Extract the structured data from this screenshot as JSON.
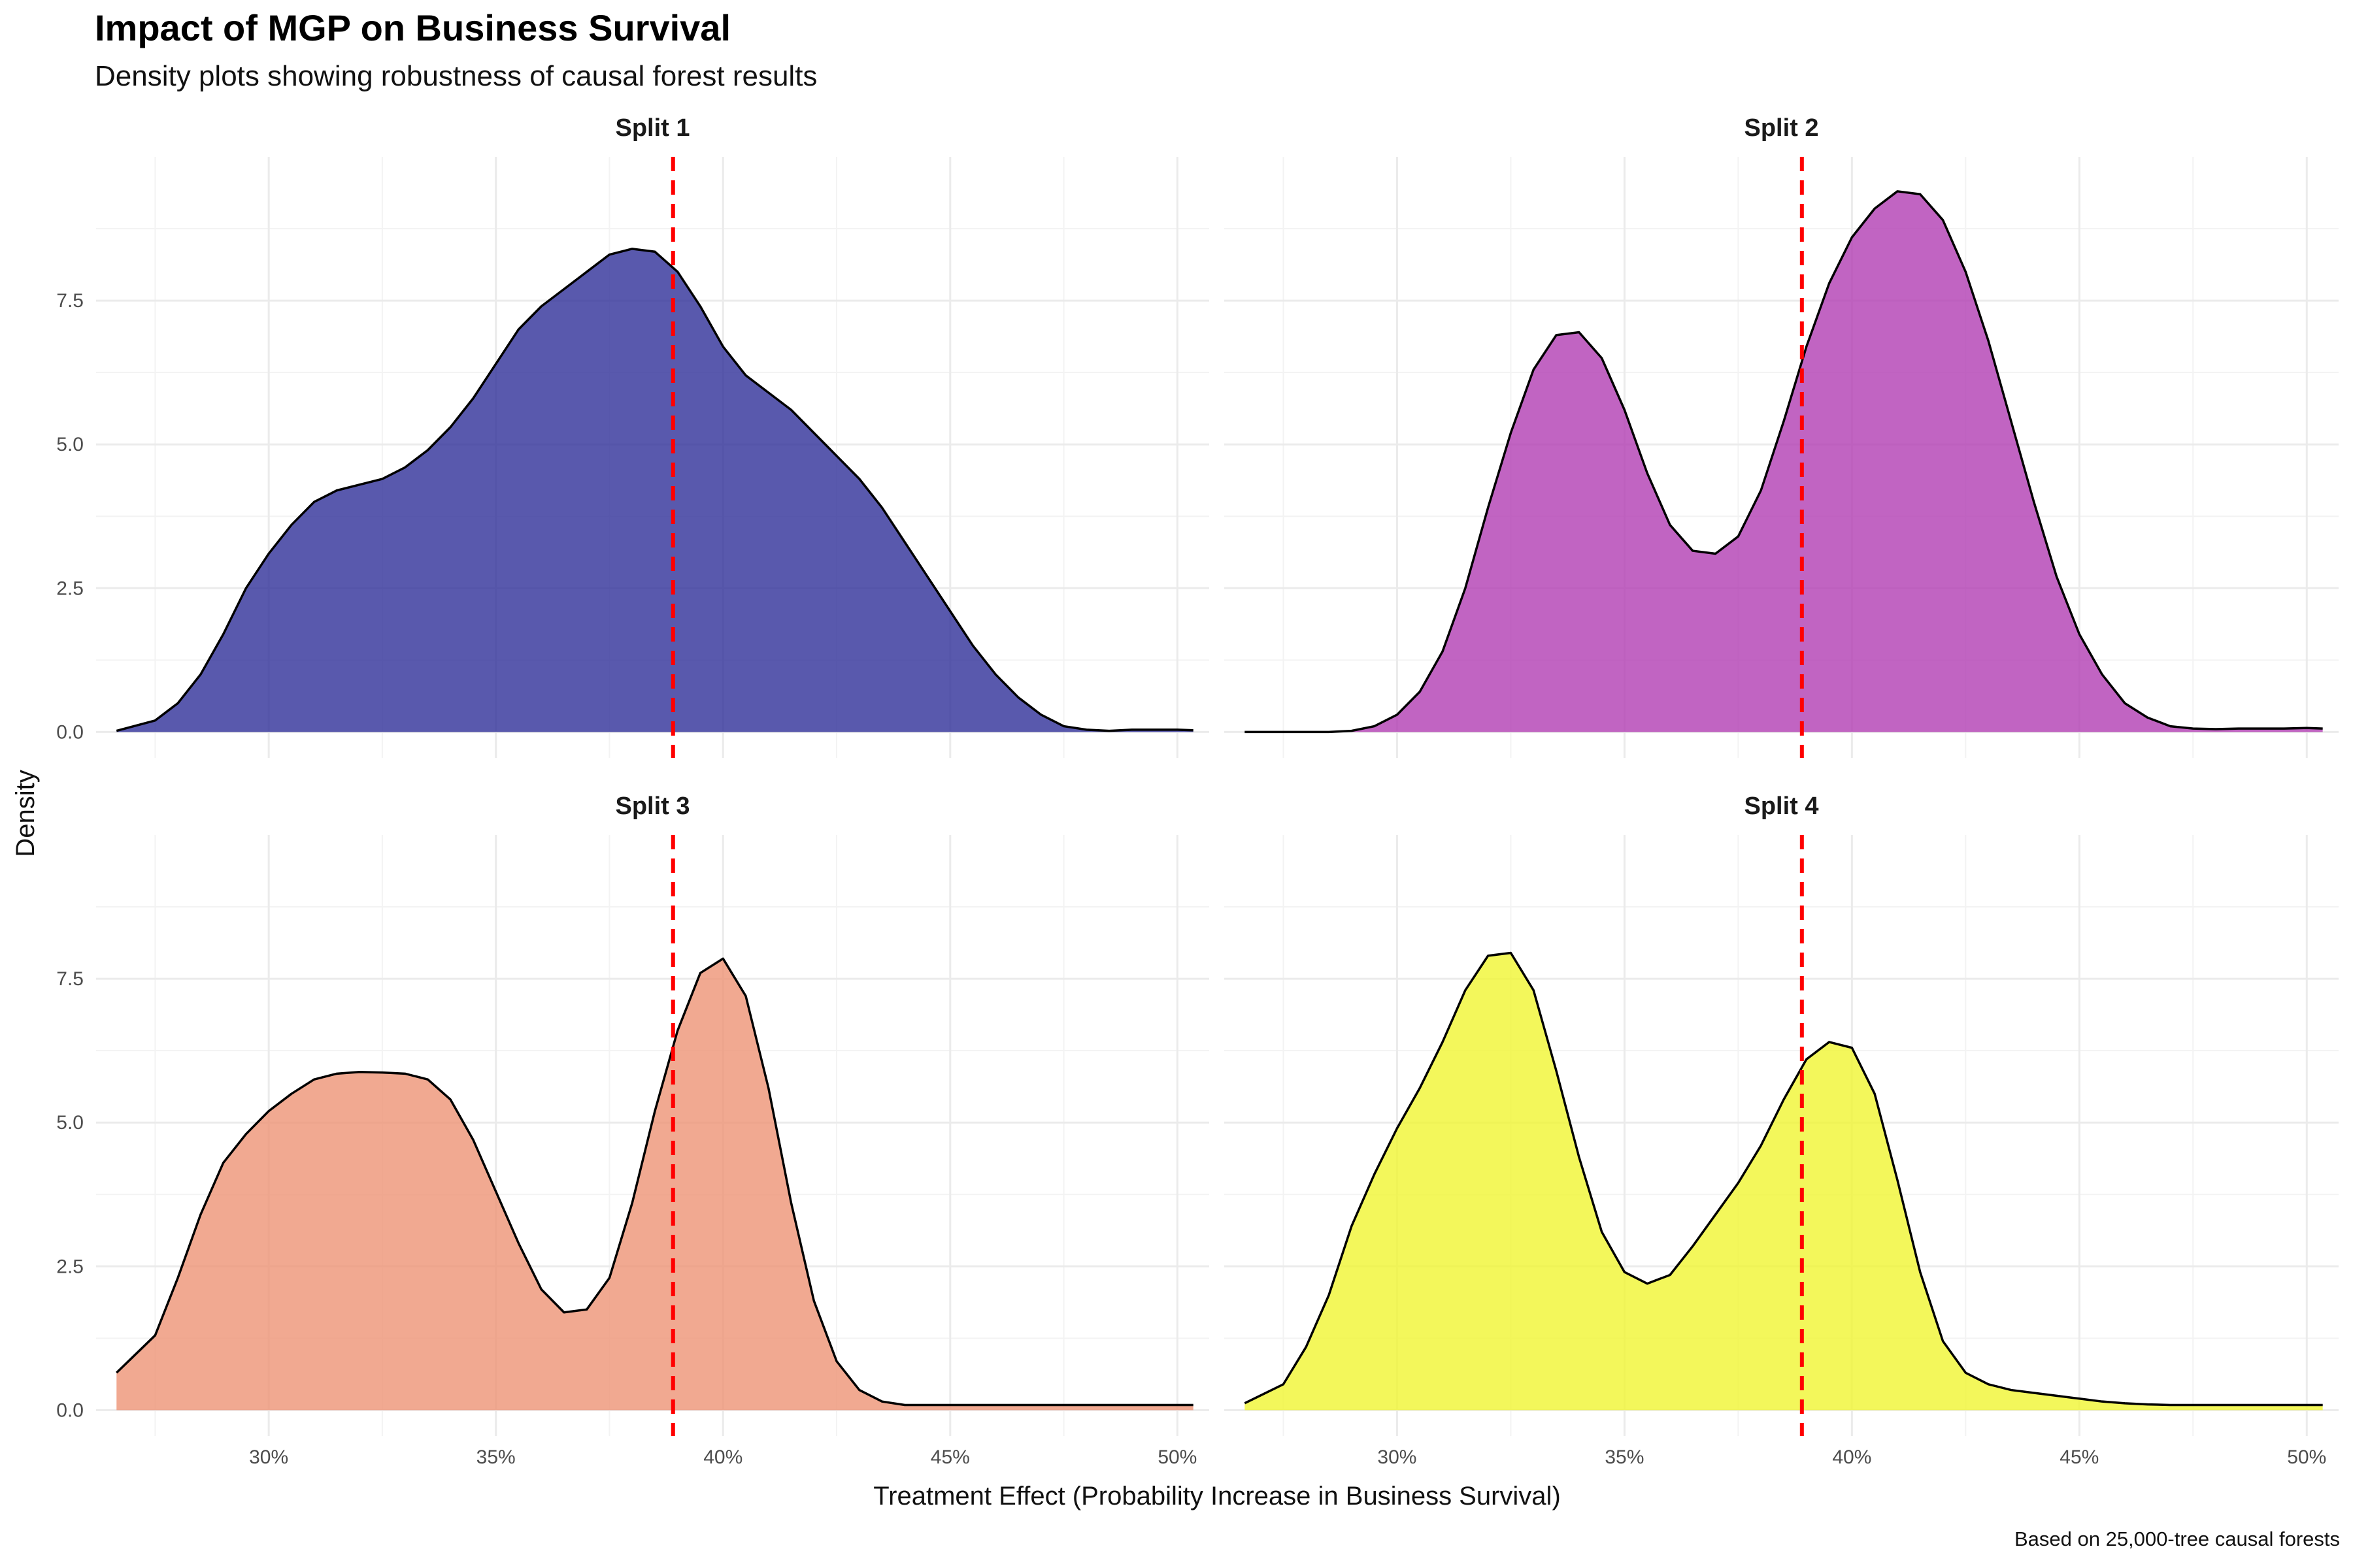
{
  "title": "Impact of MGP on Business Survival",
  "subtitle": "Density plots showing robustness of causal forest results",
  "caption": "Based on 25,000-tree causal forests",
  "chart_data": {
    "type": "area",
    "xlabel": "Treatment Effect (Probability Increase in Business Survival)",
    "ylabel": "Density",
    "xlim": [
      0.262,
      0.507
    ],
    "ylim": [
      -0.45,
      10.0
    ],
    "x_ticks": [
      0.3,
      0.35,
      0.4,
      0.45,
      0.5
    ],
    "x_tick_labels": [
      "30%",
      "35%",
      "40%",
      "45%",
      "50%"
    ],
    "y_ticks": [
      0,
      2.5,
      5,
      7.5
    ],
    "y_tick_labels": [
      "0.0",
      "2.5",
      "5.0",
      "7.5"
    ],
    "reference_line": {
      "x": 0.389,
      "color": "#ff0000",
      "style": "dashed"
    },
    "grid": true,
    "panels": [
      {
        "label": "Split 1",
        "fill": "#2f2f99",
        "x": [
          0.2665,
          0.275,
          0.28,
          0.285,
          0.29,
          0.295,
          0.3,
          0.305,
          0.31,
          0.315,
          0.32,
          0.325,
          0.33,
          0.335,
          0.34,
          0.345,
          0.35,
          0.355,
          0.36,
          0.365,
          0.37,
          0.375,
          0.38,
          0.385,
          0.39,
          0.395,
          0.4,
          0.405,
          0.41,
          0.415,
          0.42,
          0.425,
          0.43,
          0.435,
          0.44,
          0.445,
          0.45,
          0.455,
          0.46,
          0.465,
          0.47,
          0.475,
          0.48,
          0.485,
          0.49,
          0.495,
          0.5,
          0.5035
        ],
        "y": [
          0.02,
          0.2,
          0.5,
          1.0,
          1.7,
          2.5,
          3.1,
          3.6,
          4.0,
          4.2,
          4.3,
          4.4,
          4.6,
          4.9,
          5.3,
          5.8,
          6.4,
          7.0,
          7.4,
          7.7,
          8.0,
          8.3,
          8.4,
          8.35,
          8.0,
          7.4,
          6.7,
          6.2,
          5.9,
          5.6,
          5.2,
          4.8,
          4.4,
          3.9,
          3.3,
          2.7,
          2.1,
          1.5,
          1.0,
          0.6,
          0.3,
          0.1,
          0.04,
          0.02,
          0.04,
          0.04,
          0.04,
          0.03
        ]
      },
      {
        "label": "Split 2",
        "fill": "#b23db3",
        "x": [
          0.2665,
          0.275,
          0.28,
          0.285,
          0.29,
          0.295,
          0.3,
          0.305,
          0.31,
          0.315,
          0.32,
          0.325,
          0.33,
          0.335,
          0.34,
          0.345,
          0.35,
          0.355,
          0.36,
          0.365,
          0.37,
          0.375,
          0.38,
          0.385,
          0.39,
          0.395,
          0.4,
          0.405,
          0.41,
          0.415,
          0.42,
          0.425,
          0.43,
          0.435,
          0.44,
          0.445,
          0.45,
          0.455,
          0.46,
          0.465,
          0.47,
          0.475,
          0.48,
          0.485,
          0.49,
          0.495,
          0.5,
          0.5035
        ],
        "y": [
          0.0,
          0.0,
          0.0,
          0.0,
          0.02,
          0.1,
          0.3,
          0.7,
          1.4,
          2.5,
          3.9,
          5.2,
          6.3,
          6.9,
          6.95,
          6.5,
          5.6,
          4.5,
          3.6,
          3.15,
          3.1,
          3.4,
          4.2,
          5.4,
          6.7,
          7.8,
          8.6,
          9.1,
          9.4,
          9.35,
          8.9,
          8.0,
          6.8,
          5.4,
          4.0,
          2.7,
          1.7,
          1.0,
          0.5,
          0.25,
          0.1,
          0.06,
          0.05,
          0.06,
          0.06,
          0.06,
          0.07,
          0.06
        ]
      },
      {
        "label": "Split 3",
        "fill": "#ee9475",
        "x": [
          0.2665,
          0.275,
          0.28,
          0.285,
          0.29,
          0.295,
          0.3,
          0.305,
          0.31,
          0.315,
          0.32,
          0.325,
          0.33,
          0.335,
          0.34,
          0.345,
          0.35,
          0.355,
          0.36,
          0.365,
          0.37,
          0.375,
          0.38,
          0.385,
          0.39,
          0.395,
          0.4,
          0.405,
          0.41,
          0.415,
          0.42,
          0.425,
          0.43,
          0.435,
          0.44,
          0.445,
          0.45,
          0.455,
          0.46,
          0.465,
          0.47,
          0.475,
          0.48,
          0.485,
          0.49,
          0.495,
          0.5,
          0.5035
        ],
        "y": [
          0.65,
          1.3,
          2.3,
          3.4,
          4.3,
          4.8,
          5.2,
          5.5,
          5.75,
          5.85,
          5.88,
          5.87,
          5.85,
          5.75,
          5.4,
          4.7,
          3.8,
          2.9,
          2.1,
          1.7,
          1.75,
          2.3,
          3.6,
          5.2,
          6.6,
          7.6,
          7.85,
          7.2,
          5.6,
          3.6,
          1.9,
          0.85,
          0.35,
          0.15,
          0.09,
          0.09,
          0.09,
          0.09,
          0.09,
          0.09,
          0.09,
          0.09,
          0.09,
          0.09,
          0.09,
          0.09,
          0.09,
          0.09
        ]
      },
      {
        "label": "Split 4",
        "fill": "#f0f532",
        "x": [
          0.2665,
          0.275,
          0.28,
          0.285,
          0.29,
          0.295,
          0.3,
          0.305,
          0.31,
          0.315,
          0.32,
          0.325,
          0.33,
          0.335,
          0.34,
          0.345,
          0.35,
          0.355,
          0.36,
          0.365,
          0.37,
          0.375,
          0.38,
          0.385,
          0.39,
          0.395,
          0.4,
          0.405,
          0.41,
          0.415,
          0.42,
          0.425,
          0.43,
          0.435,
          0.44,
          0.445,
          0.45,
          0.455,
          0.46,
          0.465,
          0.47,
          0.475,
          0.48,
          0.485,
          0.49,
          0.495,
          0.5,
          0.5035
        ],
        "y": [
          0.12,
          0.45,
          1.1,
          2.0,
          3.2,
          4.1,
          4.9,
          5.6,
          6.4,
          7.3,
          7.9,
          7.95,
          7.3,
          5.9,
          4.4,
          3.1,
          2.4,
          2.2,
          2.35,
          2.85,
          3.4,
          3.95,
          4.6,
          5.4,
          6.1,
          6.4,
          6.3,
          5.5,
          4.0,
          2.4,
          1.2,
          0.65,
          0.45,
          0.35,
          0.3,
          0.25,
          0.2,
          0.15,
          0.12,
          0.1,
          0.09,
          0.09,
          0.09,
          0.09,
          0.09,
          0.09,
          0.09,
          0.09
        ]
      }
    ]
  }
}
